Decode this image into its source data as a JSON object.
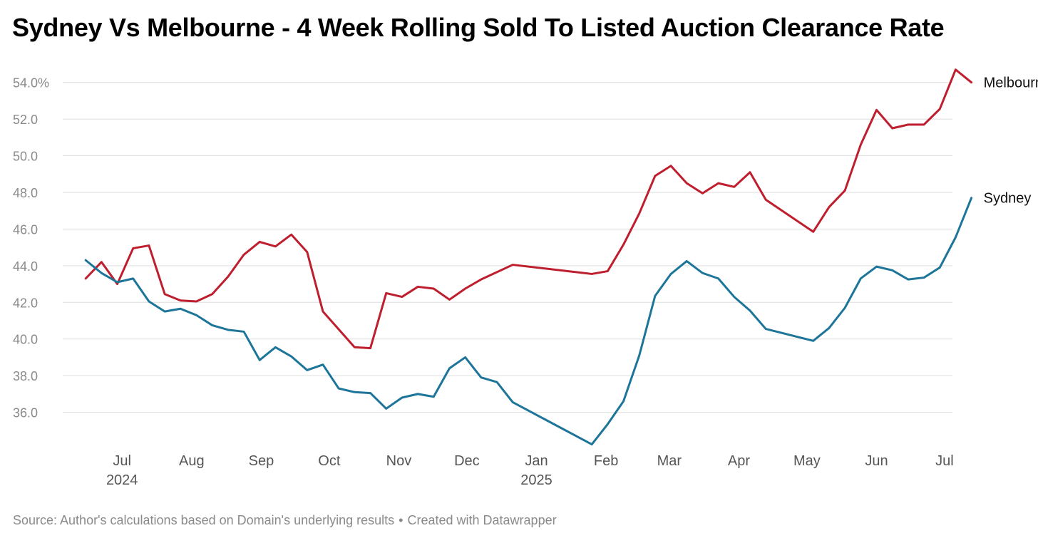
{
  "footer": {
    "source": "Source: Author's calculations based on Domain's underlying results",
    "separator": "•",
    "credit": "Created with Datawrapper"
  },
  "chart_data": {
    "type": "line",
    "title": "Sydney Vs Melbourne - 4 Week Rolling Sold To Listed Auction Clearance Rate",
    "xlabel": "",
    "ylabel": "",
    "ylim": [
      34,
      55
    ],
    "yticks": [
      36,
      38,
      40,
      42,
      44,
      46,
      48,
      50,
      52,
      54
    ],
    "ytick_labels": [
      "36.0",
      "38.0",
      "40.0",
      "42.0",
      "44.0",
      "46.0",
      "48.0",
      "50.0",
      "52.0",
      "54.0%"
    ],
    "grid": true,
    "x_range": [
      -1.45,
      54.8
    ],
    "xticks": [
      {
        "month": "Jul",
        "year": "2024",
        "x": 2.3
      },
      {
        "month": "Aug",
        "year": "",
        "x": 6.7
      },
      {
        "month": "Sep",
        "year": "",
        "x": 11.1
      },
      {
        "month": "Oct",
        "year": "",
        "x": 15.4
      },
      {
        "month": "Nov",
        "year": "",
        "x": 19.8
      },
      {
        "month": "Dec",
        "year": "",
        "x": 24.1
      },
      {
        "month": "Jan",
        "year": "2025",
        "x": 28.5
      },
      {
        "month": "Feb",
        "year": "",
        "x": 32.9
      },
      {
        "month": "Mar",
        "year": "",
        "x": 36.9
      },
      {
        "month": "Apr",
        "year": "",
        "x": 41.3
      },
      {
        "month": "May",
        "year": "",
        "x": 45.6
      },
      {
        "month": "Jun",
        "year": "",
        "x": 50.0
      },
      {
        "month": "Jul",
        "year": "",
        "x": 54.3
      }
    ],
    "x_unit": "weeks since mid-June 2024",
    "series": [
      {
        "name": "Melbourne",
        "color": "#be1e2d",
        "points": [
          [
            0,
            43.3
          ],
          [
            1,
            44.2
          ],
          [
            2,
            43.0
          ],
          [
            3,
            44.95
          ],
          [
            4,
            45.1
          ],
          [
            5,
            42.45
          ],
          [
            6,
            42.1
          ],
          [
            7,
            42.05
          ],
          [
            8,
            42.45
          ],
          [
            9,
            43.4
          ],
          [
            10,
            44.6
          ],
          [
            11,
            45.3
          ],
          [
            12,
            45.05
          ],
          [
            13,
            45.7
          ],
          [
            14,
            44.75
          ],
          [
            15,
            41.5
          ],
          [
            17,
            39.55
          ],
          [
            18,
            39.5
          ],
          [
            19,
            42.5
          ],
          [
            20,
            42.3
          ],
          [
            21,
            42.85
          ],
          [
            22,
            42.75
          ],
          [
            23,
            42.15
          ],
          [
            24,
            42.75
          ],
          [
            25,
            43.25
          ],
          [
            27,
            44.05
          ],
          [
            32,
            43.55
          ],
          [
            33,
            43.7
          ],
          [
            34,
            45.15
          ],
          [
            35,
            46.85
          ],
          [
            36,
            48.9
          ],
          [
            37,
            49.45
          ],
          [
            38,
            48.5
          ],
          [
            39,
            47.95
          ],
          [
            40,
            48.5
          ],
          [
            41,
            48.3
          ],
          [
            42,
            49.1
          ],
          [
            43,
            47.6
          ],
          [
            46,
            45.85
          ],
          [
            47,
            47.2
          ],
          [
            48,
            48.1
          ],
          [
            49,
            50.6
          ],
          [
            50,
            52.5
          ],
          [
            51,
            51.5
          ],
          [
            52,
            51.7
          ],
          [
            53,
            51.7
          ],
          [
            54,
            52.55
          ],
          [
            55,
            54.7
          ],
          [
            56,
            54.0
          ]
        ]
      },
      {
        "name": "Sydney",
        "color": "#1d7599",
        "points": [
          [
            0,
            44.3
          ],
          [
            1,
            43.6
          ],
          [
            2,
            43.1
          ],
          [
            3,
            43.3
          ],
          [
            4,
            42.05
          ],
          [
            5,
            41.5
          ],
          [
            6,
            41.65
          ],
          [
            7,
            41.3
          ],
          [
            8,
            40.75
          ],
          [
            9,
            40.5
          ],
          [
            10,
            40.4
          ],
          [
            11,
            38.85
          ],
          [
            12,
            39.55
          ],
          [
            13,
            39.05
          ],
          [
            14,
            38.3
          ],
          [
            15,
            38.6
          ],
          [
            16,
            37.3
          ],
          [
            17,
            37.1
          ],
          [
            18,
            37.05
          ],
          [
            19,
            36.2
          ],
          [
            20,
            36.8
          ],
          [
            21,
            37.0
          ],
          [
            22,
            36.85
          ],
          [
            23,
            38.4
          ],
          [
            24,
            39.0
          ],
          [
            25,
            37.9
          ],
          [
            26,
            37.65
          ],
          [
            27,
            36.55
          ],
          [
            32,
            34.25
          ],
          [
            33,
            35.35
          ],
          [
            34,
            36.6
          ],
          [
            35,
            39.1
          ],
          [
            36,
            42.35
          ],
          [
            37,
            43.55
          ],
          [
            38,
            44.25
          ],
          [
            39,
            43.6
          ],
          [
            40,
            43.3
          ],
          [
            41,
            42.3
          ],
          [
            42,
            41.55
          ],
          [
            43,
            40.55
          ],
          [
            46,
            39.9
          ],
          [
            47,
            40.6
          ],
          [
            48,
            41.7
          ],
          [
            49,
            43.3
          ],
          [
            50,
            43.95
          ],
          [
            51,
            43.75
          ],
          [
            52,
            43.25
          ],
          [
            53,
            43.35
          ],
          [
            54,
            43.9
          ],
          [
            55,
            45.55
          ],
          [
            56,
            47.7
          ]
        ]
      }
    ]
  }
}
